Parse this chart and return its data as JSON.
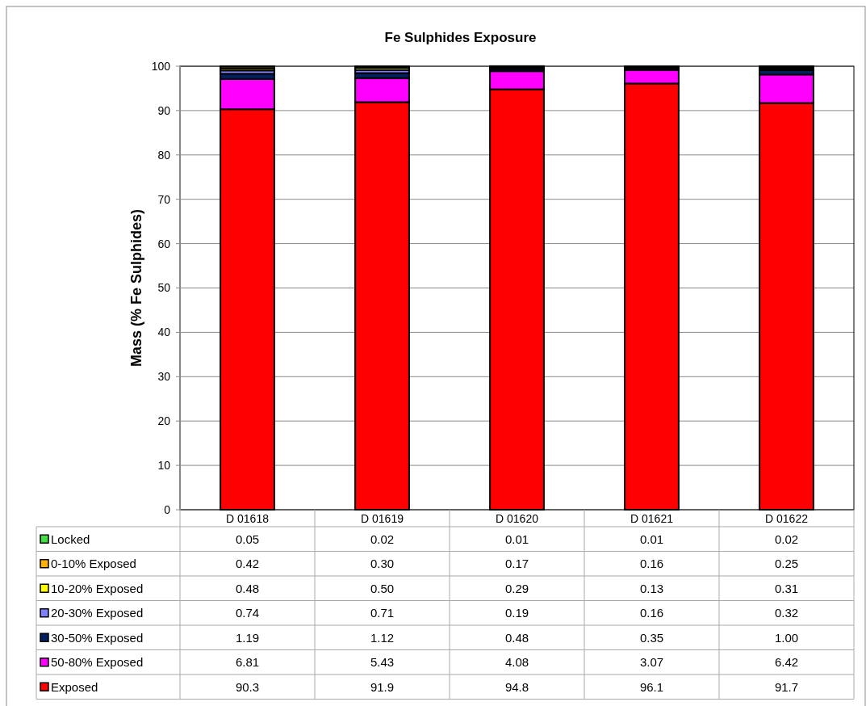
{
  "chart_data": {
    "type": "bar",
    "stacked": true,
    "title": "Fe Sulphides Exposure",
    "ylabel": "Mass (% Fe Sulphides)",
    "categories": [
      "D 01618",
      "D 01619",
      "D 01620",
      "D 01621",
      "D 01622"
    ],
    "ylim": [
      0,
      100
    ],
    "yticks": [
      0,
      10,
      20,
      30,
      40,
      50,
      60,
      70,
      80,
      90,
      100
    ],
    "grid": "y",
    "legend": "bottom",
    "series": [
      {
        "name": "Exposed",
        "color": "#ff0000",
        "values": [
          90.3,
          91.9,
          94.8,
          96.1,
          91.7
        ],
        "value_labels": [
          "90.3",
          "91.9",
          "94.8",
          "96.1",
          "91.7"
        ]
      },
      {
        "name": "50-80% Exposed",
        "color": "#ff00ff",
        "values": [
          6.81,
          5.43,
          4.08,
          3.07,
          6.42
        ],
        "value_labels": [
          "6.81",
          "5.43",
          "4.08",
          "3.07",
          "6.42"
        ]
      },
      {
        "name": "30-50% Exposed",
        "color": "#002060",
        "values": [
          1.19,
          1.12,
          0.48,
          0.35,
          1.0
        ],
        "value_labels": [
          "1.19",
          "1.12",
          "0.48",
          "0.35",
          "1.00"
        ]
      },
      {
        "name": "20-30% Exposed",
        "color": "#7f7fff",
        "values": [
          0.74,
          0.71,
          0.19,
          0.16,
          0.32
        ],
        "value_labels": [
          "0.74",
          "0.71",
          "0.19",
          "0.16",
          "0.32"
        ]
      },
      {
        "name": "10-20% Exposed",
        "color": "#ffff00",
        "values": [
          0.48,
          0.5,
          0.29,
          0.13,
          0.31
        ],
        "value_labels": [
          "0.48",
          "0.50",
          "0.29",
          "0.13",
          "0.31"
        ]
      },
      {
        "name": "0-10% Exposed",
        "color": "#ffb000",
        "values": [
          0.42,
          0.3,
          0.17,
          0.16,
          0.25
        ],
        "value_labels": [
          "0.42",
          "0.30",
          "0.17",
          "0.16",
          "0.25"
        ]
      },
      {
        "name": "Locked",
        "color": "#44dd44",
        "values": [
          0.05,
          0.02,
          0.01,
          0.01,
          0.02
        ],
        "value_labels": [
          "0.05",
          "0.02",
          "0.01",
          "0.01",
          "0.02"
        ]
      }
    ]
  }
}
